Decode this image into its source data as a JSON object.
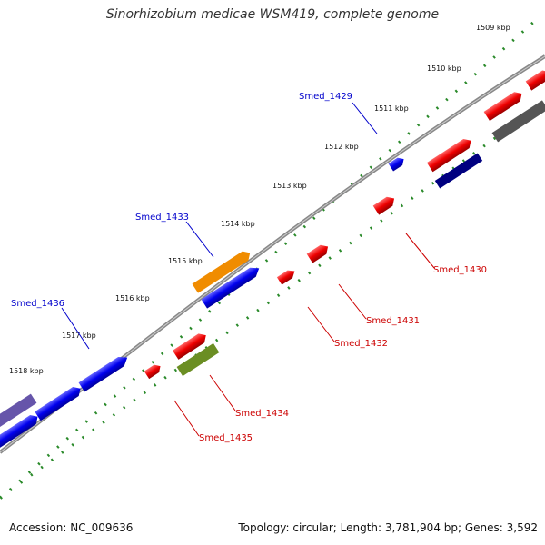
{
  "title": "Sinorhizobium medicae WSM419, complete genome",
  "accession": "Accession: NC_009636",
  "summary": "Topology: circular; Length: 3,781,904 bp; Genes: 3,592",
  "scale_labels": [
    "1509 kbp",
    "1510 kbp",
    "1511 kbp",
    "1512 kbp",
    "1513 kbp",
    "1514 kbp",
    "1515 kbp",
    "1516 kbp",
    "1517 kbp",
    "1518 kbp"
  ],
  "gene_labels": {
    "Smed_1429": "Smed_1429",
    "Smed_1430": "Smed_1430",
    "Smed_1431": "Smed_1431",
    "Smed_1432": "Smed_1432",
    "Smed_1433": "Smed_1433",
    "Smed_1434": "Smed_1434",
    "Smed_1435": "Smed_1435",
    "Smed_1436": "Smed_1436"
  },
  "colors": {
    "forward_label": "#0000cc",
    "reverse_label": "#cc0000",
    "backbone": "#888888",
    "ticks": "#2a8a2a",
    "gene_red": "#ee0000",
    "gene_blue": "#0000ee",
    "gene_orange": "#f08c00",
    "gene_olive": "#6b8e23",
    "gene_navy": "#000080",
    "gene_gray": "#555555",
    "gene_purple": "#6655aa"
  }
}
